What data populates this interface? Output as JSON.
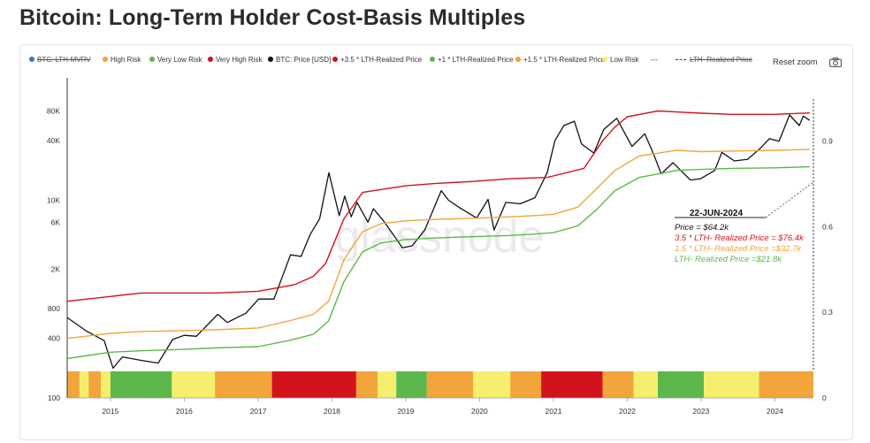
{
  "title": "Bitcoin: Long-Term Holder Cost-Basis Multiples",
  "legend": [
    {
      "label": "BTC: LTH-MVRV",
      "color": "#3f6fd8",
      "struck": true,
      "kind": "dot"
    },
    {
      "label": "High Risk",
      "color": "#f2a53a",
      "struck": false,
      "kind": "dot"
    },
    {
      "label": "Very Low Risk",
      "color": "#5cb84a",
      "struck": false,
      "kind": "dot"
    },
    {
      "label": "Very High Risk",
      "color": "#d4121c",
      "struck": false,
      "kind": "dot"
    },
    {
      "label": "BTC: Price [USD]",
      "color": "#111111",
      "struck": false,
      "kind": "dot"
    },
    {
      "label": "+3.5 * LTH-Realized Price",
      "color": "#d4121c",
      "struck": false,
      "kind": "dot"
    },
    {
      "label": "+1 * LTH-Realized Price",
      "color": "#5cb84a",
      "struck": false,
      "kind": "dot"
    },
    {
      "label": "+1.5 * LTH-Realized Price",
      "color": "#f2a53a",
      "struck": false,
      "kind": "dot"
    },
    {
      "label": "Low Risk",
      "color": "#f7ee6e",
      "struck": false,
      "kind": "dot"
    },
    {
      "label": "---",
      "color": "#444444",
      "struck": false,
      "kind": "text"
    },
    {
      "label": "LTH- Realized Price",
      "color": "#444444",
      "struck": true,
      "kind": "dash"
    }
  ],
  "toolbar": {
    "reset_zoom": "Reset zoom",
    "camera_icon": "camera-icon"
  },
  "annotation": {
    "date": "22-JUN-2024",
    "price": "Price = $64.2k",
    "line_35": "3.5 * LTH- Realized Price = $76.4k",
    "line_15": "1.5 * LTH- Realized Price =$32.7k",
    "line_1": "LTH- Realized Price =$21.8k",
    "color_price": "#111111",
    "color_35": "#d4121c",
    "color_15": "#f2a53a",
    "color_1": "#5cb84a"
  },
  "watermark": "glassnode",
  "chart_data": {
    "type": "line",
    "title": "Bitcoin: Long-Term Holder Cost-Basis Multiples",
    "xlabel": "",
    "ylabel": "",
    "y_scale": "log",
    "ylim": [
      100,
      150000
    ],
    "y2lim": [
      0,
      1.1
    ],
    "xlim": [
      "2014-06-01",
      "2024-07-10"
    ],
    "x_ticks": [
      "2015",
      "2016",
      "2017",
      "2018",
      "2019",
      "2020",
      "2021",
      "2022",
      "2023",
      "2024"
    ],
    "y_ticks": [
      {
        "label": "100",
        "value": 100
      },
      {
        "label": "400",
        "value": 400
      },
      {
        "label": "800",
        "value": 800
      },
      {
        "label": "2K",
        "value": 2000
      },
      {
        "label": "6K",
        "value": 6000
      },
      {
        "label": "10K",
        "value": 10000
      },
      {
        "label": "40K",
        "value": 40000
      },
      {
        "label": "80K",
        "value": 80000
      }
    ],
    "y2_ticks": [
      {
        "label": "0",
        "value": 0
      },
      {
        "label": "0.3",
        "value": 0.3
      },
      {
        "label": "0.6",
        "value": 0.6
      },
      {
        "label": "0.9",
        "value": 0.9
      }
    ],
    "legend_position": "top",
    "grid": false,
    "series": [
      {
        "name": "BTC: Price [USD]",
        "color": "#111111",
        "x": [
          "2014-06-01",
          "2014-09-01",
          "2014-12-01",
          "2015-01-14",
          "2015-03-01",
          "2015-06-01",
          "2015-08-25",
          "2015-11-05",
          "2016-01-01",
          "2016-03-01",
          "2016-06-15",
          "2016-08-01",
          "2016-11-01",
          "2017-01-03",
          "2017-03-20",
          "2017-06-10",
          "2017-08-01",
          "2017-09-15",
          "2017-11-01",
          "2017-12-17",
          "2018-02-06",
          "2018-03-05",
          "2018-04-06",
          "2018-05-05",
          "2018-06-28",
          "2018-07-25",
          "2018-09-10",
          "2018-11-25",
          "2018-12-15",
          "2019-02-01",
          "2019-04-05",
          "2019-06-26",
          "2019-08-01",
          "2019-09-25",
          "2019-12-18",
          "2020-02-12",
          "2020-03-13",
          "2020-05-10",
          "2020-07-20",
          "2020-10-01",
          "2020-12-01",
          "2021-01-08",
          "2021-02-21",
          "2021-04-14",
          "2021-05-20",
          "2021-07-20",
          "2021-09-07",
          "2021-11-10",
          "2022-01-24",
          "2022-03-29",
          "2022-05-12",
          "2022-06-18",
          "2022-08-15",
          "2022-11-10",
          "2022-12-30",
          "2023-03-10",
          "2023-04-14",
          "2023-06-15",
          "2023-08-20",
          "2023-10-24",
          "2023-12-05",
          "2024-01-22",
          "2024-03-14",
          "2024-05-01",
          "2024-05-21",
          "2024-06-22"
        ],
        "values": [
          650,
          480,
          380,
          200,
          260,
          240,
          225,
          390,
          430,
          420,
          700,
          580,
          720,
          1000,
          1000,
          2800,
          2700,
          4500,
          6500,
          19000,
          7000,
          11000,
          6800,
          9500,
          6000,
          8200,
          6300,
          3800,
          3300,
          3450,
          5000,
          12500,
          10000,
          8400,
          6600,
          10200,
          5000,
          9500,
          9200,
          10600,
          19000,
          40000,
          57000,
          63000,
          37000,
          30000,
          52000,
          67500,
          35000,
          47000,
          29000,
          18500,
          24000,
          16000,
          16500,
          20000,
          30500,
          25000,
          26000,
          34000,
          42000,
          39500,
          73000,
          57000,
          71000,
          64200
        ]
      },
      {
        "name": "+3.5 * LTH-Realized Price",
        "color": "#d4121c",
        "x": [
          "2014-06-01",
          "2015-06-01",
          "2016-06-01",
          "2017-01-01",
          "2017-07-01",
          "2017-10-01",
          "2017-12-01",
          "2018-03-01",
          "2018-06-01",
          "2019-01-01",
          "2019-06-01",
          "2019-12-01",
          "2020-06-01",
          "2020-12-01",
          "2021-06-01",
          "2021-09-01",
          "2021-11-01",
          "2022-01-01",
          "2022-06-01",
          "2023-01-01",
          "2023-06-01",
          "2024-01-01",
          "2024-06-22"
        ],
        "values": [
          950,
          1150,
          1150,
          1200,
          1400,
          1700,
          2300,
          6500,
          12000,
          14000,
          14800,
          15500,
          16500,
          17000,
          21000,
          40000,
          55000,
          70000,
          80000,
          76000,
          74000,
          74000,
          76400
        ]
      },
      {
        "name": "+1.5 * LTH-Realized Price",
        "color": "#f2a53a",
        "x": [
          "2014-06-01",
          "2015-01-01",
          "2015-06-01",
          "2016-01-01",
          "2016-06-01",
          "2017-01-01",
          "2017-06-01",
          "2017-10-01",
          "2017-12-15",
          "2018-03-01",
          "2018-06-01",
          "2018-09-01",
          "2019-01-01",
          "2019-06-01",
          "2020-01-01",
          "2020-06-01",
          "2020-10-01",
          "2021-01-01",
          "2021-05-01",
          "2021-08-01",
          "2021-11-01",
          "2022-03-01",
          "2022-09-01",
          "2023-01-01",
          "2023-06-01",
          "2024-01-01",
          "2024-06-22"
        ],
        "values": [
          400,
          450,
          470,
          480,
          490,
          510,
          600,
          700,
          950,
          2500,
          4800,
          5800,
          6200,
          6400,
          6600,
          6800,
          7000,
          7200,
          8500,
          13000,
          20000,
          28000,
          32000,
          31000,
          31500,
          32000,
          32700
        ]
      },
      {
        "name": "+1 * LTH-Realized Price",
        "color": "#5cb84a",
        "x": [
          "2014-06-01",
          "2015-01-01",
          "2015-06-01",
          "2016-01-01",
          "2016-06-01",
          "2017-01-01",
          "2017-06-01",
          "2017-10-01",
          "2017-12-15",
          "2018-03-01",
          "2018-06-01",
          "2018-09-01",
          "2019-01-01",
          "2019-06-01",
          "2020-01-01",
          "2020-06-01",
          "2020-10-01",
          "2021-01-01",
          "2021-05-01",
          "2021-08-01",
          "2021-11-01",
          "2022-03-01",
          "2022-09-01",
          "2023-01-01",
          "2023-06-01",
          "2024-01-01",
          "2024-06-22"
        ],
        "values": [
          250,
          290,
          300,
          310,
          320,
          330,
          380,
          440,
          600,
          1500,
          3000,
          3700,
          4000,
          4150,
          4300,
          4400,
          4550,
          4700,
          5500,
          8000,
          12500,
          17000,
          20000,
          20500,
          21000,
          21300,
          21800
        ]
      }
    ],
    "risk_bands": [
      {
        "start": "2014-06-01",
        "end": "2014-08-01",
        "risk": "high"
      },
      {
        "start": "2014-08-01",
        "end": "2014-09-15",
        "risk": "low"
      },
      {
        "start": "2014-09-15",
        "end": "2014-11-15",
        "risk": "high"
      },
      {
        "start": "2014-11-15",
        "end": "2015-01-01",
        "risk": "low"
      },
      {
        "start": "2015-01-01",
        "end": "2015-11-01",
        "risk": "very_low"
      },
      {
        "start": "2015-11-01",
        "end": "2016-06-01",
        "risk": "low"
      },
      {
        "start": "2016-06-01",
        "end": "2017-03-10",
        "risk": "high"
      },
      {
        "start": "2017-03-10",
        "end": "2018-05-01",
        "risk": "very_high"
      },
      {
        "start": "2018-05-01",
        "end": "2018-08-15",
        "risk": "high"
      },
      {
        "start": "2018-08-15",
        "end": "2018-11-15",
        "risk": "low"
      },
      {
        "start": "2018-11-15",
        "end": "2019-04-15",
        "risk": "very_low"
      },
      {
        "start": "2019-04-15",
        "end": "2019-12-01",
        "risk": "high"
      },
      {
        "start": "2019-12-01",
        "end": "2020-02-15",
        "risk": "low"
      },
      {
        "start": "2020-02-15",
        "end": "2020-06-01",
        "risk": "low"
      },
      {
        "start": "2020-06-01",
        "end": "2020-11-01",
        "risk": "high"
      },
      {
        "start": "2020-11-01",
        "end": "2021-09-01",
        "risk": "very_high"
      },
      {
        "start": "2021-09-01",
        "end": "2022-02-01",
        "risk": "high"
      },
      {
        "start": "2022-02-01",
        "end": "2022-06-01",
        "risk": "low"
      },
      {
        "start": "2022-06-01",
        "end": "2023-01-15",
        "risk": "very_low"
      },
      {
        "start": "2023-01-15",
        "end": "2023-06-01",
        "risk": "low"
      },
      {
        "start": "2023-06-01",
        "end": "2023-10-15",
        "risk": "low"
      },
      {
        "start": "2023-10-15",
        "end": "2024-07-10",
        "risk": "high"
      }
    ],
    "risk_colors": {
      "very_low": "#5cb84a",
      "low": "#f7ee6e",
      "high": "#f2a53a",
      "very_high": "#d4121c"
    }
  }
}
